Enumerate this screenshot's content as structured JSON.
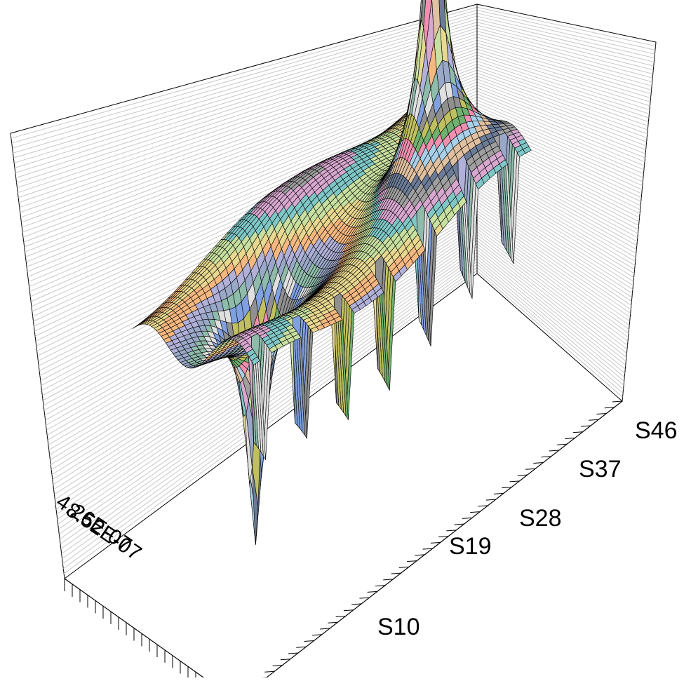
{
  "chart_data": {
    "type": "surface-3d",
    "title": "",
    "xlabel": "",
    "ylabel": "",
    "zlabel": "",
    "series_axis_ticks": [
      "S10",
      "S19",
      "S28",
      "S37",
      "S46"
    ],
    "category_axis_ticks": [
      "4.26E-07",
      "8.52E-07"
    ],
    "legend": "none",
    "grid": true,
    "rows": 48,
    "cols": 52,
    "features": [
      {
        "kind": "peak",
        "row": 38,
        "col": 19,
        "relative_height": 1.0
      },
      {
        "kind": "trough",
        "row": 14,
        "col": 34,
        "relative_height": -1.0
      }
    ],
    "surface_colors": [
      "#8fbcaa",
      "#9aa8c8",
      "#b0b0d8",
      "#f5b880",
      "#e8d890",
      "#c8e0a0",
      "#80c8c8",
      "#d8a8d0",
      "#a0a0a0",
      "#6c7c98",
      "#e0c0a0",
      "#a8d0e8",
      "#f090b0",
      "#70b070",
      "#c0c060",
      "#909090",
      "#80a0e0",
      "#e0e0e0"
    ]
  }
}
